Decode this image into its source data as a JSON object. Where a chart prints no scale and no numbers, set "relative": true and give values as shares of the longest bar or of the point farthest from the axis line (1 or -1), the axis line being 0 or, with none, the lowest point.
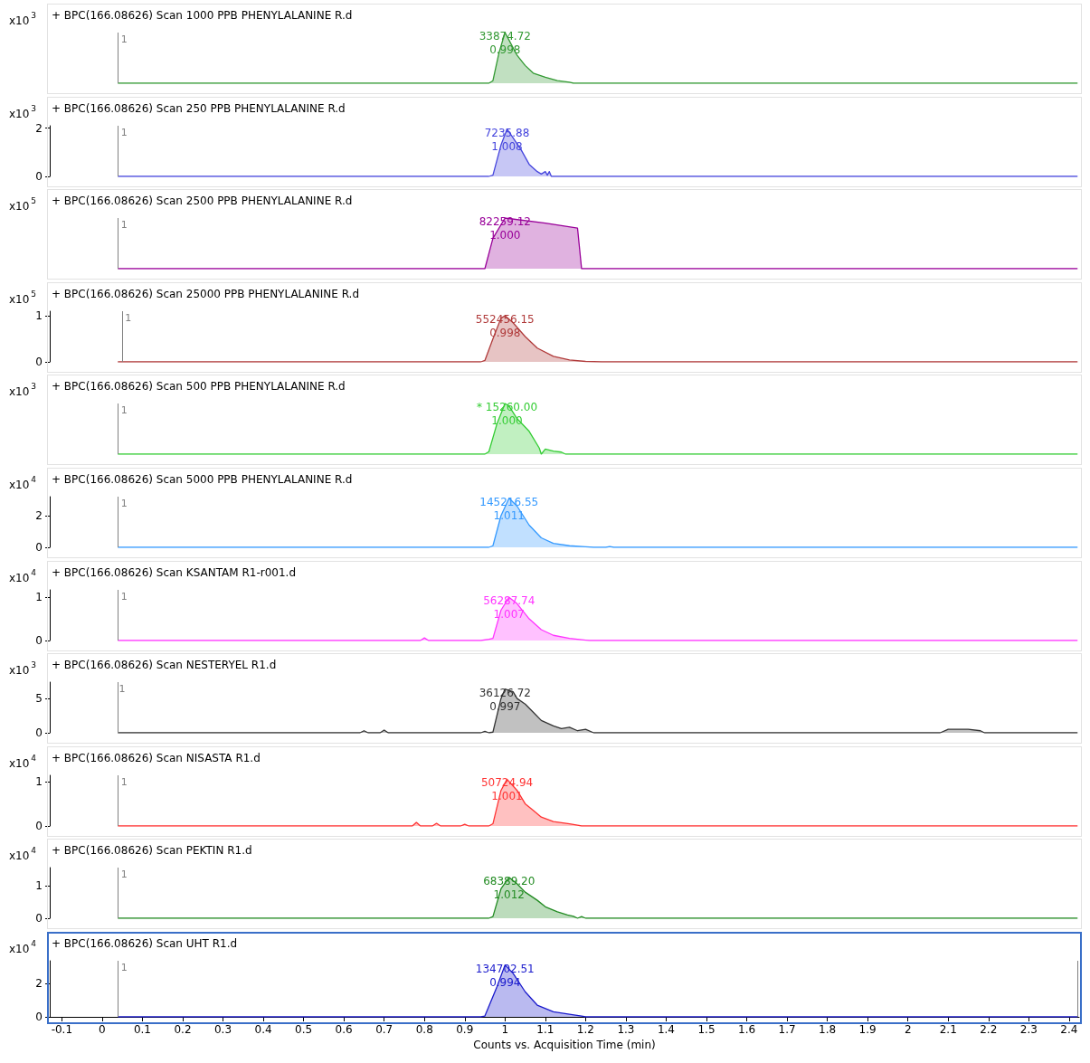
{
  "chart_data": [
    {
      "type": "area",
      "title": "+ BPC(166.08626) Scan 1000 PPB PHENYLALANINE R.d",
      "ylabel": "x10$^{3}$",
      "relative": true,
      "x": [
        0.04,
        0.96,
        0.97,
        0.985,
        1.0,
        1.01,
        1.03,
        1.05,
        1.07,
        1.1,
        1.13,
        1.16,
        1.17,
        2.42
      ],
      "series": [
        {
          "color": "#339933",
          "values": [
            0,
            0,
            0.05,
            0.6,
            1,
            0.85,
            0.55,
            0.35,
            0.2,
            0.12,
            0.05,
            0.02,
            0,
            0
          ]
        }
      ],
      "xlim": [
        -0.13,
        2.425
      ],
      "xticks": [
        -0.1,
        0,
        0.1,
        0.2,
        0.3,
        0.4,
        0.5,
        0.6,
        0.7,
        0.8,
        0.9,
        1,
        1.1,
        1.2,
        1.3,
        1.4,
        1.5,
        1.6,
        1.7,
        1.8,
        1.9,
        2,
        2.1,
        2.2,
        2.3,
        2.4
      ],
      "tick_labels": false,
      "ref_lines": [
        {
          "axis": "x",
          "value": 0.04,
          "color": "#808080"
        }
      ],
      "annotations": [
        {
          "text": "33874.72",
          "x": 1.0,
          "y": 1
        },
        {
          "text": "0.998",
          "x": 1.0,
          "y": 1
        },
        {
          "text": "1",
          "x": 0.04,
          "y": 1
        }
      ]
    },
    {
      "type": "area",
      "title": "+ BPC(166.08626) Scan 250 PPB PHENYLALANINE R.d",
      "ylabel": "x10$^{3}$",
      "x": [
        0.04,
        0.96,
        0.97,
        0.99,
        1.005,
        1.02,
        1.04,
        1.06,
        1.08,
        1.09,
        1.1,
        1.105,
        1.11,
        1.115,
        1.12,
        2.42
      ],
      "series": [
        {
          "color": "#4444dd",
          "values": [
            0,
            0,
            0.05,
            1.3,
            1.96,
            1.6,
            1.1,
            0.5,
            0.2,
            0.1,
            0.2,
            0.05,
            0.2,
            0,
            0,
            0
          ]
        }
      ],
      "xlim": [
        -0.13,
        2.425
      ],
      "xticks": [
        -0.1,
        0,
        0.1,
        0.2,
        0.3,
        0.4,
        0.5,
        0.6,
        0.7,
        0.8,
        0.9,
        1,
        1.1,
        1.2,
        1.3,
        1.4,
        1.5,
        1.6,
        1.7,
        1.8,
        1.9,
        2,
        2.1,
        2.2,
        2.3,
        2.4
      ],
      "ylim": [
        0,
        2.1
      ],
      "yticks": [
        0,
        2
      ],
      "tick_labels": "y",
      "ref_lines": [
        {
          "axis": "x",
          "value": 0.04,
          "color": "#808080"
        }
      ],
      "annotations": [
        {
          "text": "7235.88",
          "x": 1.005,
          "y": 1.96
        },
        {
          "text": "1.008",
          "x": 1.005,
          "y": 1.96
        },
        {
          "text": "1",
          "x": 0.04,
          "y": 2.1
        }
      ]
    },
    {
      "type": "area",
      "title": "+ BPC(166.08626) Scan 2500 PPB PHENYLALANINE R.d",
      "ylabel": "x10$^{5}$",
      "relative": true,
      "x": [
        0.04,
        0.95,
        0.97,
        1.0,
        1.1,
        1.18,
        1.19,
        2.42
      ],
      "series": [
        {
          "color": "#990099",
          "values": [
            0,
            0,
            0.6,
            1,
            0.9,
            0.8,
            0,
            0
          ]
        }
      ],
      "xlim": [
        -0.13,
        2.425
      ],
      "xticks": [
        -0.1,
        0,
        0.1,
        0.2,
        0.3,
        0.4,
        0.5,
        0.6,
        0.7,
        0.8,
        0.9,
        1,
        1.1,
        1.2,
        1.3,
        1.4,
        1.5,
        1.6,
        1.7,
        1.8,
        1.9,
        2,
        2.1,
        2.2,
        2.3,
        2.4
      ],
      "tick_labels": false,
      "ref_lines": [
        {
          "axis": "x",
          "value": 0.04,
          "color": "#808080"
        }
      ],
      "annotations": [
        {
          "text": "82259.12",
          "x": 1.0,
          "y": 1
        },
        {
          "text": "1.000",
          "x": 1.0,
          "y": 1
        },
        {
          "text": "1",
          "x": 0.04,
          "y": 1
        }
      ]
    },
    {
      "type": "area",
      "title": "+ BPC(166.08626) Scan 25000 PPB PHENYLALANINE R.d",
      "ylabel": "x10$^{5}$",
      "x": [
        0.04,
        0.94,
        0.95,
        0.97,
        0.99,
        1.0,
        1.02,
        1.05,
        1.08,
        1.12,
        1.16,
        1.2,
        1.24,
        2.42
      ],
      "series": [
        {
          "color": "#b03a3a",
          "values": [
            0,
            0,
            0.03,
            0.5,
            0.95,
            1.0,
            0.85,
            0.55,
            0.3,
            0.12,
            0.04,
            0.01,
            0,
            0
          ]
        }
      ],
      "xlim": [
        -0.13,
        2.425
      ],
      "xticks": [
        -0.1,
        0,
        0.1,
        0.2,
        0.3,
        0.4,
        0.5,
        0.6,
        0.7,
        0.8,
        0.9,
        1,
        1.1,
        1.2,
        1.3,
        1.4,
        1.5,
        1.6,
        1.7,
        1.8,
        1.9,
        2,
        2.1,
        2.2,
        2.3,
        2.4
      ],
      "ylim": [
        0,
        1.1
      ],
      "yticks": [
        0,
        1
      ],
      "tick_labels": "y",
      "ref_lines": [
        {
          "axis": "x",
          "value": 0.05,
          "color": "#808080"
        }
      ],
      "annotations": [
        {
          "text": "552456.15",
          "x": 1.0,
          "y": 1.0
        },
        {
          "text": "0.998",
          "x": 1.0,
          "y": 1.0
        },
        {
          "text": "1",
          "x": 0.05,
          "y": 1.1
        }
      ]
    },
    {
      "type": "area",
      "title": "+ BPC(166.08626) Scan 500 PPB PHENYLALANINE R.d",
      "ylabel": "x10$^{3}$",
      "relative": true,
      "x": [
        0.04,
        0.95,
        0.96,
        0.98,
        1.0,
        1.01,
        1.03,
        1.06,
        1.085,
        1.09,
        1.1,
        1.12,
        1.14,
        1.15,
        2.42
      ],
      "series": [
        {
          "color": "#33cc33",
          "values": [
            0,
            0,
            0.05,
            0.6,
            1,
            0.95,
            0.7,
            0.45,
            0.12,
            0,
            0.1,
            0.06,
            0.04,
            0,
            0
          ]
        }
      ],
      "xlim": [
        -0.13,
        2.425
      ],
      "xticks": [
        -0.1,
        0,
        0.1,
        0.2,
        0.3,
        0.4,
        0.5,
        0.6,
        0.7,
        0.8,
        0.9,
        1,
        1.1,
        1.2,
        1.3,
        1.4,
        1.5,
        1.6,
        1.7,
        1.8,
        1.9,
        2,
        2.1,
        2.2,
        2.3,
        2.4
      ],
      "tick_labels": false,
      "ref_lines": [
        {
          "axis": "x",
          "value": 0.04,
          "color": "#808080"
        }
      ],
      "annotations": [
        {
          "text": "* 15260.00",
          "x": 1.005,
          "y": 1
        },
        {
          "text": "1.000",
          "x": 1.005,
          "y": 1
        },
        {
          "text": "1",
          "x": 0.04,
          "y": 1
        }
      ]
    },
    {
      "type": "area",
      "title": "+ BPC(166.08626) Scan 5000 PPB PHENYLALANINE R.d",
      "ylabel": "x10$^{4}$",
      "x": [
        0.04,
        0.96,
        0.97,
        0.99,
        1.01,
        1.03,
        1.06,
        1.09,
        1.12,
        1.16,
        1.2,
        1.22,
        1.25,
        1.26,
        1.27,
        2.42
      ],
      "series": [
        {
          "color": "#3399ff",
          "values": [
            0,
            0,
            0.1,
            2.0,
            3.1,
            2.6,
            1.4,
            0.6,
            0.25,
            0.1,
            0.03,
            0,
            0,
            0.05,
            0,
            0
          ]
        }
      ],
      "xlim": [
        -0.13,
        2.425
      ],
      "xticks": [
        -0.1,
        0,
        0.1,
        0.2,
        0.3,
        0.4,
        0.5,
        0.6,
        0.7,
        0.8,
        0.9,
        1,
        1.1,
        1.2,
        1.3,
        1.4,
        1.5,
        1.6,
        1.7,
        1.8,
        1.9,
        2,
        2.1,
        2.2,
        2.3,
        2.4
      ],
      "ylim": [
        0,
        3.2
      ],
      "yticks": [
        0,
        2
      ],
      "tick_labels": "y",
      "ref_lines": [
        {
          "axis": "x",
          "value": 0.04,
          "color": "#808080"
        }
      ],
      "annotations": [
        {
          "text": "145216.55",
          "x": 1.01,
          "y": 3.1
        },
        {
          "text": "1.011",
          "x": 1.01,
          "y": 3.1
        },
        {
          "text": "1",
          "x": 0.04,
          "y": 3.2
        }
      ]
    },
    {
      "type": "area",
      "title": "+ BPC(166.08626) Scan KSANTAM R1-r001.d",
      "ylabel": "x10$^{4}$",
      "x": [
        0.04,
        0.79,
        0.8,
        0.81,
        0.94,
        0.96,
        0.97,
        0.99,
        1.01,
        1.03,
        1.06,
        1.09,
        1.12,
        1.16,
        1.2,
        1.21,
        2.42
      ],
      "series": [
        {
          "color": "#ff33ff",
          "values": [
            0,
            0,
            0.06,
            0,
            0,
            0.03,
            0.05,
            0.7,
            1.0,
            0.85,
            0.5,
            0.25,
            0.12,
            0.05,
            0.01,
            0,
            0
          ]
        }
      ],
      "xlim": [
        -0.13,
        2.425
      ],
      "xticks": [
        -0.1,
        0,
        0.1,
        0.2,
        0.3,
        0.4,
        0.5,
        0.6,
        0.7,
        0.8,
        0.9,
        1,
        1.1,
        1.2,
        1.3,
        1.4,
        1.5,
        1.6,
        1.7,
        1.8,
        1.9,
        2,
        2.1,
        2.2,
        2.3,
        2.4
      ],
      "ylim": [
        0,
        1.17
      ],
      "yticks": [
        0,
        1
      ],
      "tick_labels": "y",
      "ref_lines": [
        {
          "axis": "x",
          "value": 0.04,
          "color": "#808080"
        }
      ],
      "annotations": [
        {
          "text": "56287.74",
          "x": 1.01,
          "y": 1.0
        },
        {
          "text": "1.007",
          "x": 1.01,
          "y": 1.0
        },
        {
          "text": "1",
          "x": 0.04,
          "y": 1.17
        }
      ]
    },
    {
      "type": "area",
      "title": "+ BPC(166.08626) Scan NESTERYEL R1.d",
      "ylabel": "x10$^{3}$",
      "x": [
        0.04,
        0.64,
        0.65,
        0.66,
        0.69,
        0.7,
        0.71,
        0.94,
        0.95,
        0.96,
        0.97,
        0.99,
        1.0,
        1.02,
        1.03,
        1.05,
        1.07,
        1.09,
        1.12,
        1.14,
        1.16,
        1.18,
        1.2,
        1.22,
        2.08,
        2.1,
        2.15,
        2.18,
        2.19,
        2.42
      ],
      "series": [
        {
          "color": "#333333",
          "values": [
            0,
            0,
            0.3,
            0,
            0,
            0.4,
            0,
            0,
            0.2,
            0,
            0.1,
            5,
            6.4,
            6,
            5,
            4.2,
            3,
            1.8,
            1,
            0.6,
            0.8,
            0.3,
            0.5,
            0,
            0,
            0.5,
            0.5,
            0.3,
            0,
            0
          ]
        }
      ],
      "xlim": [
        -0.13,
        2.425
      ],
      "xticks": [
        -0.1,
        0,
        0.1,
        0.2,
        0.3,
        0.4,
        0.5,
        0.6,
        0.7,
        0.8,
        0.9,
        1,
        1.1,
        1.2,
        1.3,
        1.4,
        1.5,
        1.6,
        1.7,
        1.8,
        1.9,
        2,
        2.1,
        2.2,
        2.3,
        2.4
      ],
      "ylim": [
        0,
        7.4
      ],
      "yticks": [
        0,
        5
      ],
      "tick_labels": "y",
      "ref_lines": [
        {
          "axis": "x",
          "value": 0.035,
          "color": "#808080"
        }
      ],
      "annotations": [
        {
          "text": "36126.72",
          "x": 1.0,
          "y": 6.4
        },
        {
          "text": "0.997",
          "x": 1.0,
          "y": 6.4
        },
        {
          "text": "1",
          "x": 0.035,
          "y": 7.4
        }
      ]
    },
    {
      "type": "area",
      "title": "+ BPC(166.08626) Scan NISASTA R1.d",
      "ylabel": "x10$^{4}$",
      "x": [
        0.04,
        0.77,
        0.78,
        0.79,
        0.82,
        0.83,
        0.84,
        0.89,
        0.9,
        0.91,
        0.96,
        0.97,
        0.99,
        1.005,
        1.03,
        1.05,
        1.07,
        1.09,
        1.12,
        1.16,
        1.18,
        1.19,
        2.42
      ],
      "series": [
        {
          "color": "#ff3333",
          "values": [
            0,
            0,
            0.08,
            0,
            0,
            0.06,
            0,
            0,
            0.04,
            0,
            0,
            0.05,
            0.8,
            1.05,
            0.8,
            0.5,
            0.35,
            0.2,
            0.1,
            0.05,
            0.02,
            0,
            0
          ]
        }
      ],
      "xlim": [
        -0.13,
        2.425
      ],
      "xticks": [
        -0.1,
        0,
        0.1,
        0.2,
        0.3,
        0.4,
        0.5,
        0.6,
        0.7,
        0.8,
        0.9,
        1,
        1.1,
        1.2,
        1.3,
        1.4,
        1.5,
        1.6,
        1.7,
        1.8,
        1.9,
        2,
        2.1,
        2.2,
        2.3,
        2.4
      ],
      "ylim": [
        0,
        1.14
      ],
      "yticks": [
        0,
        1
      ],
      "tick_labels": "y",
      "ref_lines": [
        {
          "axis": "x",
          "value": 0.04,
          "color": "#808080"
        }
      ],
      "annotations": [
        {
          "text": "50724.94",
          "x": 1.005,
          "y": 1.05
        },
        {
          "text": "1.001",
          "x": 1.005,
          "y": 1.05
        },
        {
          "text": "1",
          "x": 0.04,
          "y": 1.14
        }
      ]
    },
    {
      "type": "area",
      "title": "+ BPC(166.08626) Scan PEKTIN R1.d",
      "ylabel": "x10$^{4}$",
      "x": [
        0.04,
        0.96,
        0.97,
        0.99,
        1.01,
        1.03,
        1.05,
        1.08,
        1.1,
        1.13,
        1.155,
        1.17,
        1.18,
        1.19,
        1.2,
        2.42
      ],
      "series": [
        {
          "color": "#228b22",
          "values": [
            0,
            0,
            0.05,
            0.9,
            1.25,
            1.05,
            0.8,
            0.55,
            0.35,
            0.2,
            0.1,
            0.06,
            0,
            0.05,
            0,
            0
          ]
        }
      ],
      "xlim": [
        -0.13,
        2.425
      ],
      "xticks": [
        -0.1,
        0,
        0.1,
        0.2,
        0.3,
        0.4,
        0.5,
        0.6,
        0.7,
        0.8,
        0.9,
        1,
        1.1,
        1.2,
        1.3,
        1.4,
        1.5,
        1.6,
        1.7,
        1.8,
        1.9,
        2,
        2.1,
        2.2,
        2.3,
        2.4
      ],
      "ylim": [
        0,
        1.55
      ],
      "yticks": [
        0,
        1
      ],
      "tick_labels": "y",
      "ref_lines": [
        {
          "axis": "x",
          "value": 0.04,
          "color": "#808080"
        }
      ],
      "annotations": [
        {
          "text": "68389.20",
          "x": 1.01,
          "y": 1.25
        },
        {
          "text": "1.012",
          "x": 1.01,
          "y": 1.25
        },
        {
          "text": "1",
          "x": 0.04,
          "y": 1.55
        }
      ]
    },
    {
      "type": "area",
      "title": "+ BPC(166.08626) Scan UHT R1.d",
      "ylabel": "x10$^{4}$",
      "xlabel": "Counts vs. Acquisition Time (min)",
      "x": [
        0.04,
        0.94,
        0.95,
        0.98,
        1.0,
        1.02,
        1.05,
        1.08,
        1.12,
        1.16,
        1.19,
        1.2,
        2.42
      ],
      "series": [
        {
          "color": "#1a1acc",
          "values": [
            0,
            0,
            0.05,
            1.8,
            3.1,
            2.6,
            1.5,
            0.7,
            0.3,
            0.15,
            0.05,
            0,
            0
          ]
        }
      ],
      "xlim": [
        -0.13,
        2.425
      ],
      "xticks": [
        -0.1,
        0,
        0.1,
        0.2,
        0.3,
        0.4,
        0.5,
        0.6,
        0.7,
        0.8,
        0.9,
        1,
        1.1,
        1.2,
        1.3,
        1.4,
        1.5,
        1.6,
        1.7,
        1.8,
        1.9,
        2,
        2.1,
        2.2,
        2.3,
        2.4
      ],
      "ylim": [
        0,
        3.35
      ],
      "yticks": [
        0,
        2
      ],
      "ref_lines": [
        {
          "axis": "x",
          "value": 0.04,
          "color": "#808080"
        },
        {
          "axis": "x",
          "value": 2.42,
          "color": "#808080"
        }
      ],
      "annotations": [
        {
          "text": "134702.51",
          "x": 1.0,
          "y": 3.1
        },
        {
          "text": "0.994",
          "x": 1.0,
          "y": 3.1
        },
        {
          "text": "1",
          "x": 0.04,
          "y": 3.35
        }
      ]
    }
  ]
}
